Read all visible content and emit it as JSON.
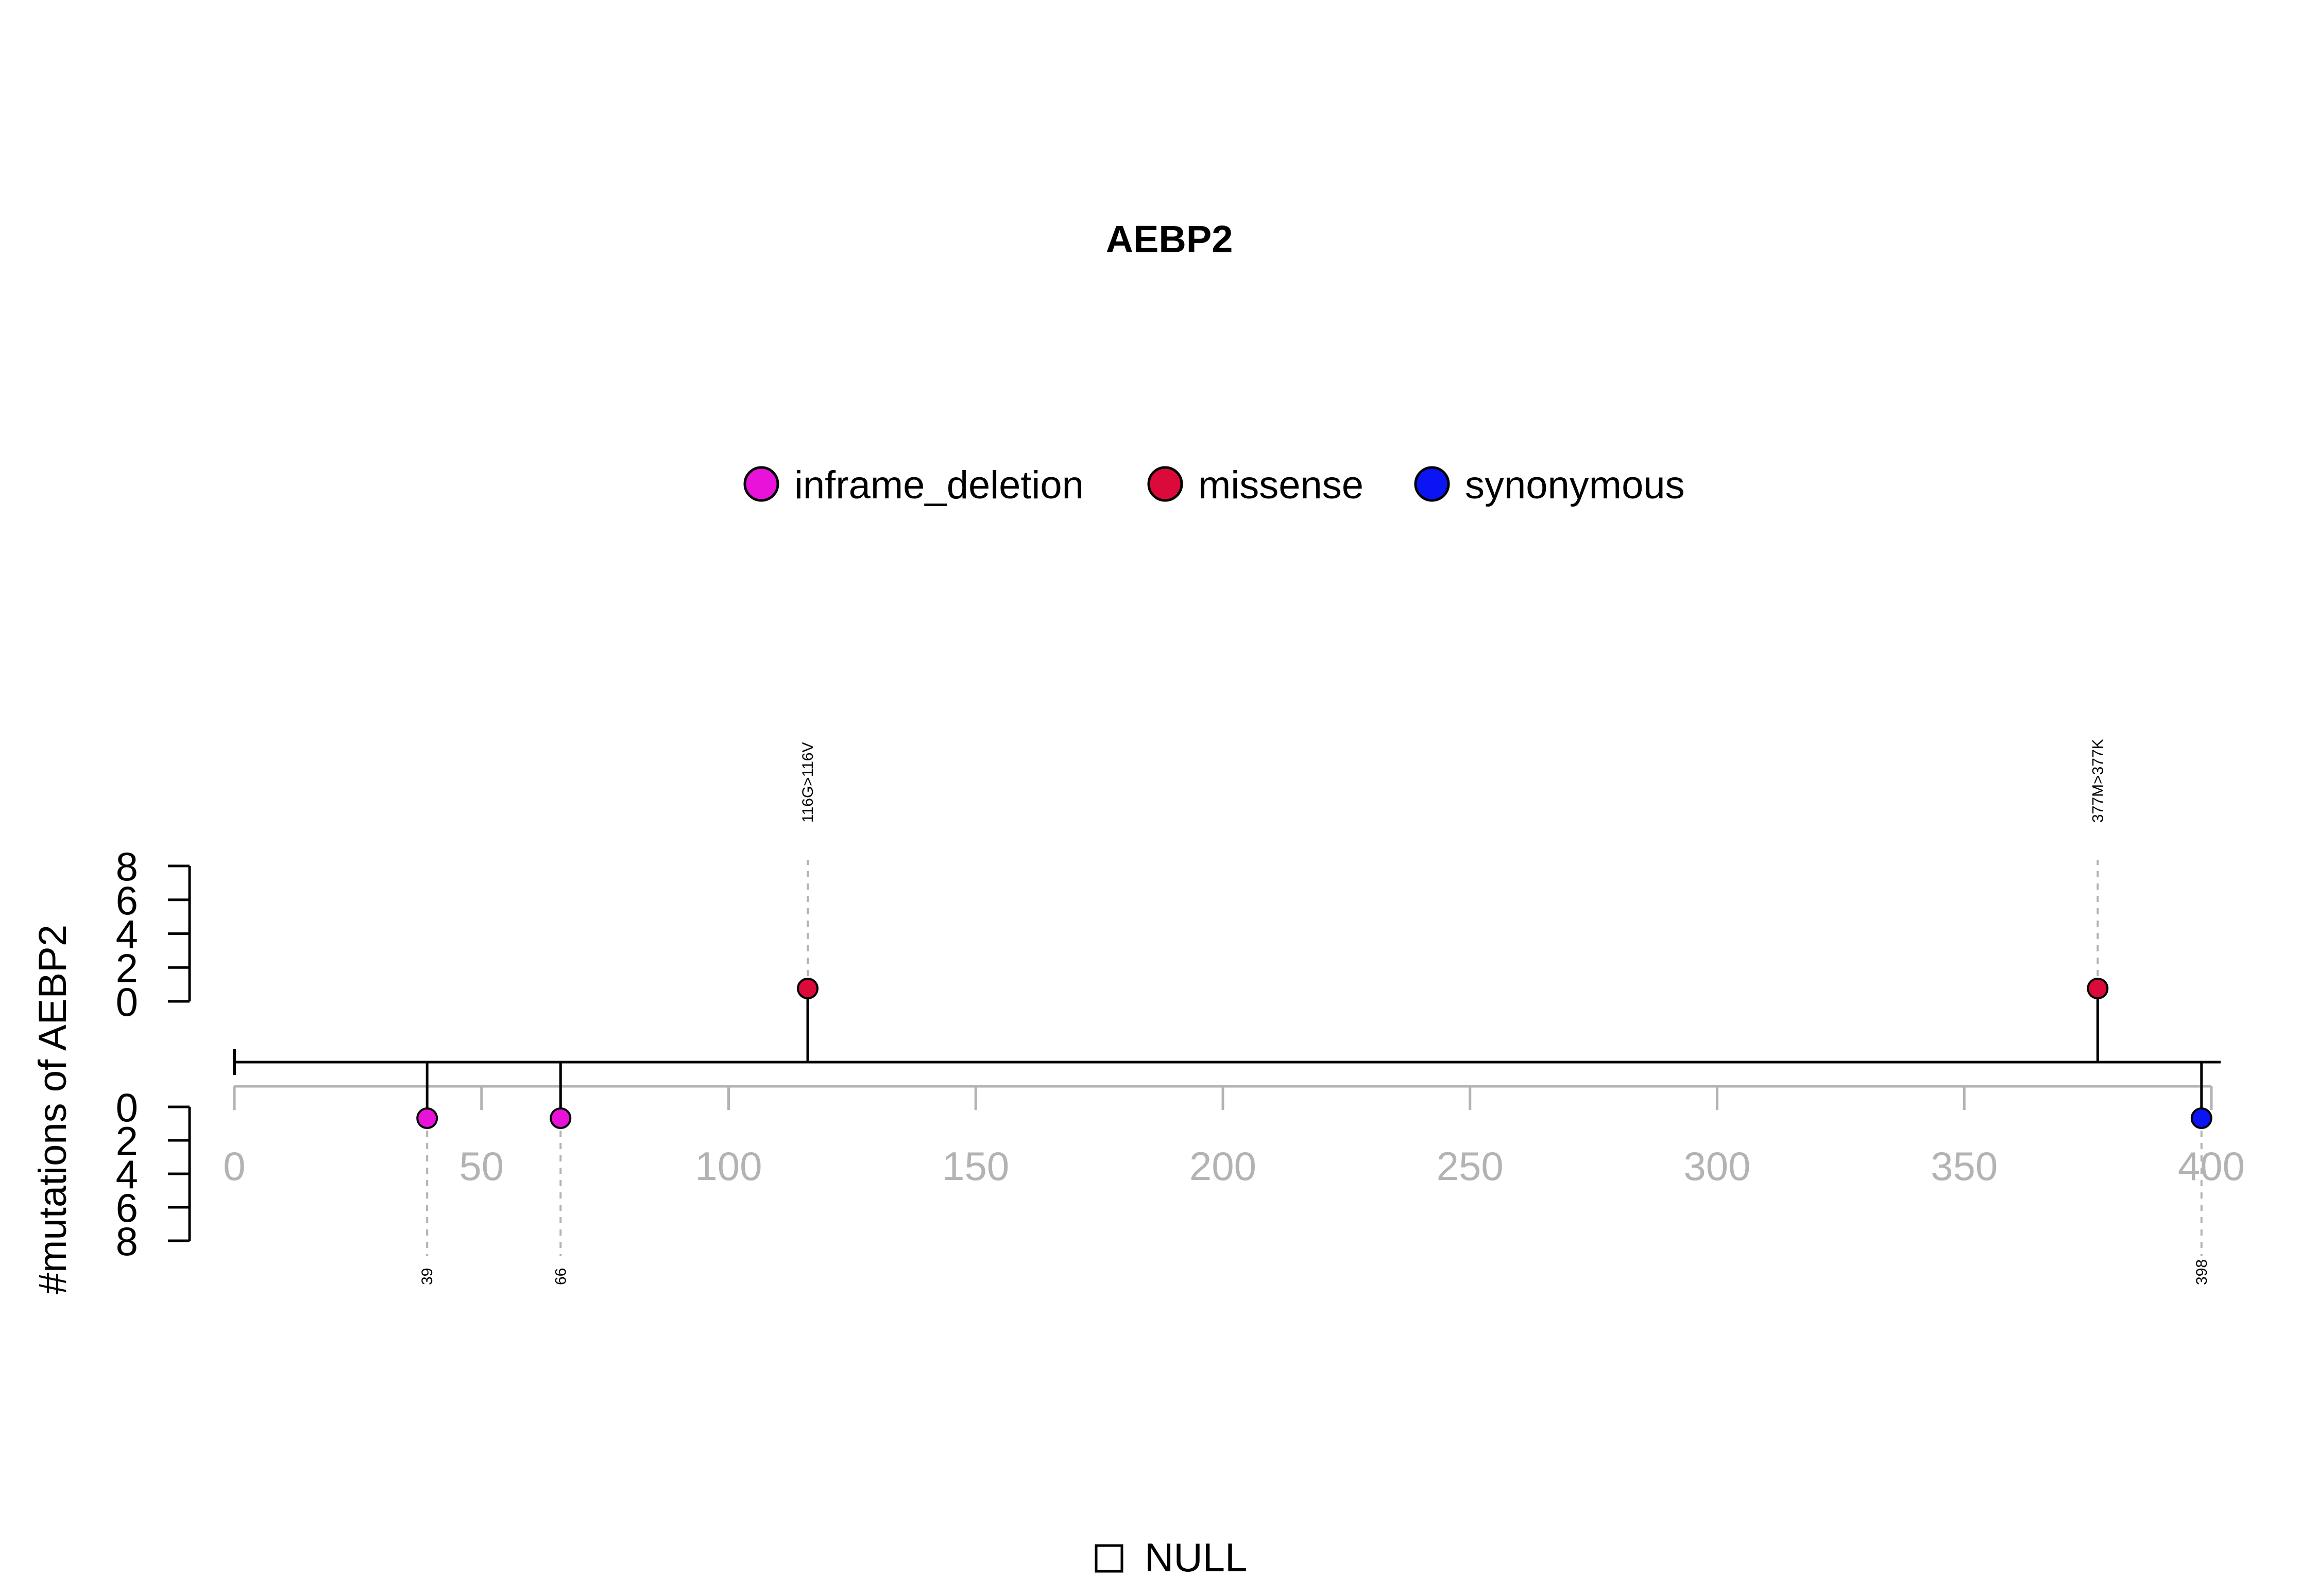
{
  "chart_data": {
    "type": "scatter",
    "subtype": "lollipop",
    "title": "AEBP2",
    "ylabel": "#mutations of AEBP2",
    "xlim": [
      0,
      400
    ],
    "x_ticks": [
      0,
      50,
      100,
      150,
      200,
      250,
      300,
      350,
      400
    ],
    "y_ticks_top": [
      0,
      2,
      4,
      6,
      8
    ],
    "y_ticks_bottom": [
      0,
      2,
      4,
      6,
      8
    ],
    "ylim": [
      0,
      8
    ],
    "legend": {
      "placement": "top-center",
      "entries": [
        {
          "name": "inframe_deletion",
          "color": "#E812D8"
        },
        {
          "name": "missense",
          "color": "#DC0A3A"
        },
        {
          "name": "synonymous",
          "color": "#0A14F5"
        }
      ]
    },
    "null_legend": {
      "symbol": "□",
      "label": "NULL"
    },
    "series": [
      {
        "name": "inframe_deletion",
        "color": "#E812D8",
        "points": [
          {
            "x": 39,
            "side": "bottom",
            "label": "39"
          },
          {
            "x": 66,
            "side": "bottom",
            "label": "66"
          }
        ]
      },
      {
        "name": "missense",
        "color": "#DC0A3A",
        "points": [
          {
            "x": 116,
            "side": "top",
            "label": "116G>116V"
          },
          {
            "x": 377,
            "side": "top",
            "label": "377M>377K"
          }
        ]
      },
      {
        "name": "synonymous",
        "color": "#0A14F5",
        "points": [
          {
            "x": 398,
            "side": "bottom",
            "label": "398"
          }
        ]
      }
    ],
    "grid": false
  }
}
